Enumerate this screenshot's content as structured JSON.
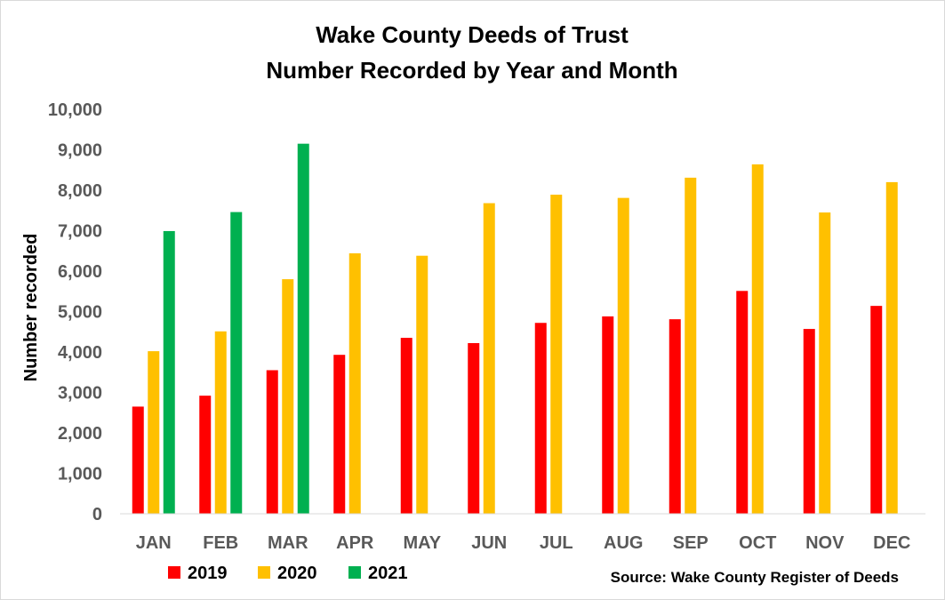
{
  "chart_data": {
    "type": "bar",
    "title": [
      "Wake County Deeds of Trust",
      "Number Recorded by Year and Month"
    ],
    "ylabel": "Number recorded",
    "xlabel": "",
    "ylim": [
      0,
      10000
    ],
    "yticks": [
      "0",
      "1,000",
      "2,000",
      "3,000",
      "4,000",
      "5,000",
      "6,000",
      "7,000",
      "8,000",
      "9,000",
      "10,000"
    ],
    "ytick_values": [
      0,
      1000,
      2000,
      3000,
      4000,
      5000,
      6000,
      7000,
      8000,
      9000,
      10000
    ],
    "grid": false,
    "legend_position": "bottom-left",
    "categories": [
      "JAN",
      "FEB",
      "MAR",
      "APR",
      "MAY",
      "JUN",
      "JUL",
      "AUG",
      "SEP",
      "OCT",
      "NOV",
      "DEC"
    ],
    "series": [
      {
        "name": "2019",
        "color": "#ff0000",
        "values": [
          2650,
          2920,
          3550,
          3930,
          4350,
          4220,
          4720,
          4880,
          4810,
          5510,
          4570,
          5140
        ]
      },
      {
        "name": "2020",
        "color": "#ffc000",
        "values": [
          4020,
          4510,
          5800,
          6440,
          6380,
          7680,
          7890,
          7810,
          8310,
          8640,
          7450,
          8200
        ]
      },
      {
        "name": "2021",
        "color": "#00b050",
        "values": [
          6990,
          7460,
          9150,
          null,
          null,
          null,
          null,
          null,
          null,
          null,
          null,
          null
        ]
      }
    ],
    "source": "Source: Wake County Register of Deeds"
  }
}
